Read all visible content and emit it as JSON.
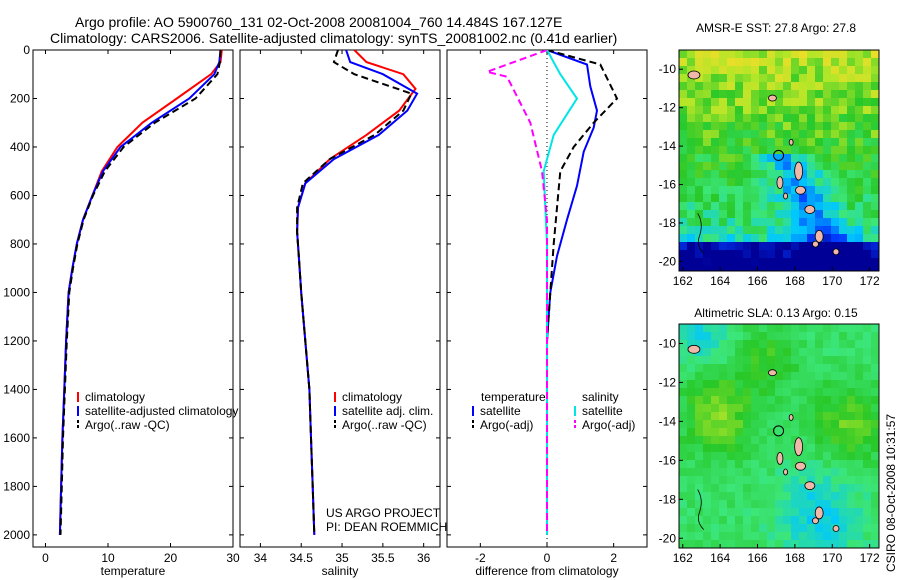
{
  "header": {
    "line1": "Argo profile: AO 5900760_131 02-Oct-2008 20081004_760 14.484S 167.127E",
    "line2": "Climatology: CARS2006. Satellite-adjusted climatology: synTS_20081002.nc (0.41d earlier)"
  },
  "credit": {
    "line1": "US ARGO PROJECT",
    "line2": "PI: DEAN ROEMMICH",
    "footer": "CSIRO 08-Oct-2008 10:31:57"
  },
  "colors": {
    "climatology": "#ff0000",
    "satellite": "#0000ff",
    "argo": "#000000",
    "sal_satellite": "#00e5e5",
    "sal_argo": "#ff00ff"
  },
  "chart_data": [
    {
      "type": "line",
      "xlabel": "temperature",
      "ylabel": "",
      "xlim": [
        -2,
        30
      ],
      "ylim": [
        2050,
        0
      ],
      "xticks": [
        0,
        10,
        20,
        30
      ],
      "yticks": [
        0,
        200,
        400,
        600,
        800,
        1000,
        1200,
        1400,
        1600,
        1800,
        2000
      ],
      "legend": [
        "climatology",
        "satellite-adjusted climatology",
        "Argo(..raw -QC)"
      ],
      "series": [
        {
          "name": "climatology",
          "color": "#ff0000",
          "dash": "",
          "x": [
            28.2,
            28.0,
            26.5,
            21.0,
            15.5,
            11.5,
            9.0,
            7.5,
            6.0,
            5.0,
            4.3,
            3.7,
            3.3,
            3.0,
            2.7,
            2.5,
            2.3
          ],
          "y": [
            0,
            50,
            100,
            200,
            300,
            400,
            500,
            600,
            700,
            800,
            900,
            1000,
            1200,
            1400,
            1600,
            1800,
            2000
          ]
        },
        {
          "name": "satellite-adjusted climatology",
          "color": "#0000ff",
          "dash": "",
          "x": [
            28.0,
            27.8,
            27.0,
            23.0,
            17.0,
            12.0,
            9.2,
            7.5,
            6.0,
            5.0,
            4.3,
            3.7,
            3.3,
            3.0,
            2.7,
            2.5,
            2.3
          ],
          "y": [
            0,
            50,
            100,
            200,
            300,
            400,
            500,
            600,
            700,
            800,
            900,
            1000,
            1200,
            1400,
            1600,
            1800,
            2000
          ]
        },
        {
          "name": "Argo(..raw -QC)",
          "color": "#000000",
          "dash": "7,4",
          "x": [
            28.0,
            27.9,
            27.5,
            24.0,
            17.5,
            12.5,
            9.5,
            7.6,
            6.1,
            5.1,
            4.4,
            3.8,
            3.4,
            3.1,
            2.8,
            2.6,
            2.4
          ],
          "y": [
            0,
            50,
            100,
            200,
            300,
            400,
            500,
            600,
            700,
            800,
            900,
            1000,
            1200,
            1400,
            1600,
            1800,
            2000
          ]
        }
      ]
    },
    {
      "type": "line",
      "xlabel": "salinity",
      "xlim": [
        33.75,
        36.2
      ],
      "ylim": [
        2050,
        0
      ],
      "xticks": [
        34,
        34.5,
        35,
        35.5,
        36
      ],
      "legend": [
        "climatology",
        "satellite adj. clim.",
        "Argo(..raw -QC)"
      ],
      "series": [
        {
          "name": "climatology",
          "color": "#ff0000",
          "dash": "",
          "x": [
            35.15,
            35.3,
            35.75,
            35.9,
            35.7,
            35.3,
            34.85,
            34.55,
            34.46,
            34.45,
            34.47,
            34.5,
            34.55,
            34.6,
            34.62,
            34.64,
            34.66
          ],
          "y": [
            0,
            50,
            100,
            160,
            250,
            350,
            450,
            550,
            650,
            750,
            850,
            1000,
            1200,
            1400,
            1600,
            1800,
            2000
          ]
        },
        {
          "name": "satellite adj. clim.",
          "color": "#0000ff",
          "dash": "",
          "x": [
            35.05,
            35.1,
            35.5,
            35.92,
            35.8,
            35.45,
            34.9,
            34.55,
            34.46,
            34.45,
            34.47,
            34.5,
            34.55,
            34.6,
            34.62,
            34.64,
            34.66
          ],
          "y": [
            0,
            50,
            100,
            180,
            250,
            350,
            450,
            550,
            650,
            750,
            850,
            1000,
            1200,
            1400,
            1600,
            1800,
            2000
          ]
        },
        {
          "name": "Argo(..raw -QC)",
          "color": "#000000",
          "dash": "7,4",
          "x": [
            34.95,
            34.9,
            35.15,
            35.85,
            35.75,
            35.4,
            34.85,
            34.52,
            34.45,
            34.45,
            34.47,
            34.5,
            34.55,
            34.6,
            34.62,
            34.64,
            34.66
          ],
          "y": [
            0,
            50,
            100,
            180,
            250,
            350,
            450,
            550,
            650,
            750,
            850,
            1000,
            1200,
            1400,
            1600,
            1800,
            2000
          ]
        }
      ]
    },
    {
      "type": "line",
      "xlabel": "difference from climatology",
      "xlim": [
        -3,
        3
      ],
      "ylim": [
        2050,
        0
      ],
      "xticks": [
        -2,
        0,
        2
      ],
      "legend_titles": [
        "temperature",
        "salinity"
      ],
      "legend": [
        "satellite",
        "Argo(-adj)",
        "satellite",
        "Argo(-adj)"
      ],
      "series": [
        {
          "name": "satellite",
          "color": "#0000ff",
          "dash": "",
          "x": [
            0.0,
            1.2,
            1.3,
            1.5,
            1.4,
            1.1,
            0.9,
            0.6,
            0.3,
            0.1,
            0.0,
            0.0,
            0.0
          ],
          "y": [
            0,
            60,
            150,
            250,
            320,
            420,
            560,
            700,
            850,
            1000,
            1200,
            1600,
            2000
          ]
        },
        {
          "name": "Argo(-adj)",
          "color": "#000000",
          "dash": "7,4",
          "x": [
            0.0,
            1.6,
            2.1,
            1.4,
            0.8,
            0.4,
            0.3,
            0.2,
            0.1,
            0.0,
            0.0,
            0.0
          ],
          "y": [
            0,
            60,
            200,
            300,
            400,
            500,
            650,
            800,
            1000,
            1200,
            1600,
            2000
          ]
        },
        {
          "name": "satellite",
          "color": "#00e5e5",
          "dash": "",
          "x": [
            0.0,
            0.4,
            0.9,
            0.2,
            -0.1,
            -0.05,
            0.0,
            0.0,
            0.0
          ],
          "y": [
            0,
            100,
            200,
            350,
            500,
            650,
            800,
            1200,
            2000
          ]
        },
        {
          "name": "Argo(-adj)",
          "color": "#ff00ff",
          "dash": "7,4",
          "x": [
            0.0,
            -1.8,
            -1.2,
            -0.5,
            -0.15,
            0.0,
            0.0,
            0.0
          ],
          "y": [
            0,
            90,
            110,
            300,
            500,
            700,
            1200,
            2000
          ]
        }
      ]
    }
  ],
  "maps": [
    {
      "title": "AMSR-E SST: 27.8 Argo: 27.8",
      "scheme": "sst",
      "xticks": [
        162,
        164,
        166,
        168,
        170,
        172
      ],
      "yticks": [
        -10,
        -12,
        -14,
        -16,
        -18,
        -20
      ],
      "xlim": [
        161.8,
        172.5
      ],
      "ylim": [
        -20.5,
        -9
      ]
    },
    {
      "title": "Altimetric SLA: 0.13 Argo: 0.15",
      "scheme": "sla",
      "xticks": [
        162,
        164,
        166,
        168,
        170,
        172
      ],
      "yticks": [
        -10,
        -12,
        -14,
        -16,
        -18,
        -20
      ],
      "xlim": [
        161.8,
        172.5
      ],
      "ylim": [
        -20.5,
        -9
      ]
    }
  ]
}
